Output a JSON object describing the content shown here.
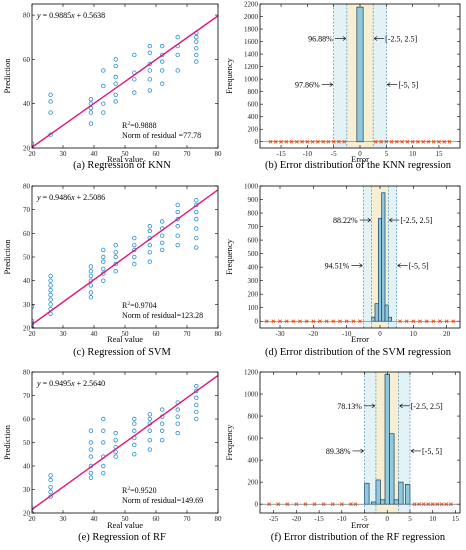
{
  "chart_data": [
    {
      "id": "a",
      "type": "scatter",
      "caption": "(a) Regression of KNN",
      "xlabel": "Real value",
      "ylabel": "Prediction",
      "xlim": [
        20,
        80
      ],
      "ylim": [
        20,
        85
      ],
      "xticks": [
        20,
        30,
        40,
        50,
        60,
        70,
        80
      ],
      "yticks": [
        20,
        40,
        60,
        80
      ],
      "equation": {
        "prefix": "y",
        "rest": " = 0.9885",
        "x": "x",
        "tail": " + 0.5638"
      },
      "r2": {
        "pre": "R",
        "sup": "2",
        "post": "=0.9888"
      },
      "norm": "Norm of residual =77.78",
      "fit": {
        "slope": 0.9885,
        "intercept": 0.5638
      },
      "points": [
        [
          20,
          22
        ],
        [
          26,
          26
        ],
        [
          26,
          36
        ],
        [
          26,
          41
        ],
        [
          26,
          44
        ],
        [
          39,
          31
        ],
        [
          39,
          36
        ],
        [
          39,
          38
        ],
        [
          39,
          40
        ],
        [
          39,
          42
        ],
        [
          43,
          36
        ],
        [
          43,
          40
        ],
        [
          43,
          48
        ],
        [
          43,
          55
        ],
        [
          47,
          41
        ],
        [
          47,
          44
        ],
        [
          47,
          49
        ],
        [
          47,
          52
        ],
        [
          47,
          57
        ],
        [
          47,
          60
        ],
        [
          53,
          45
        ],
        [
          53,
          51
        ],
        [
          53,
          54
        ],
        [
          53,
          62
        ],
        [
          58,
          46
        ],
        [
          58,
          51
        ],
        [
          58,
          55
        ],
        [
          58,
          58
        ],
        [
          58,
          63
        ],
        [
          58,
          66
        ],
        [
          62,
          49
        ],
        [
          62,
          55
        ],
        [
          62,
          59
        ],
        [
          62,
          62
        ],
        [
          62,
          66
        ],
        [
          67,
          55
        ],
        [
          67,
          62
        ],
        [
          67,
          66
        ],
        [
          67,
          70
        ],
        [
          73,
          59
        ],
        [
          73,
          62
        ],
        [
          73,
          65
        ],
        [
          73,
          68
        ],
        [
          73,
          70
        ],
        [
          73,
          72
        ]
      ]
    },
    {
      "id": "b",
      "type": "bar",
      "caption": "(b) Error distribution of the KNN regression",
      "xlabel": "Error",
      "ylabel": "Frequency",
      "xlim": [
        -19,
        19
      ],
      "ylim": [
        -100,
        2200
      ],
      "xticks": [
        -15,
        -10,
        -5,
        0,
        5,
        10,
        15
      ],
      "yticks": [
        0,
        200,
        400,
        600,
        800,
        1000,
        1200,
        1400,
        1600,
        1800,
        2000,
        2200
      ],
      "bars": [
        {
          "x": -0.6,
          "w": 1.2,
          "v": 2150
        }
      ],
      "bands": {
        "inner": [
          -2.5,
          2.5
        ],
        "outer": [
          -5,
          5
        ]
      },
      "labels": {
        "pct_inner": "96.88%",
        "pct_outer": "97.86%",
        "range_inner": "[-2.5, 2.5]",
        "range_outer": "[-5, 5]"
      },
      "outliers": [
        -17,
        -16,
        -15,
        -14,
        -13,
        -12,
        -11,
        -10,
        -9,
        -8,
        -7,
        -6,
        -5,
        -4,
        -3,
        3,
        4,
        5,
        6,
        7,
        8,
        9,
        10,
        11,
        12,
        13,
        14,
        15,
        16,
        17
      ]
    },
    {
      "id": "c",
      "type": "scatter",
      "caption": "(c) Regression of SVM",
      "xlabel": "Real value",
      "ylabel": "Prediction",
      "xlim": [
        20,
        80
      ],
      "ylim": [
        20,
        80
      ],
      "xticks": [
        20,
        30,
        40,
        50,
        60,
        70,
        80
      ],
      "yticks": [
        20,
        30,
        40,
        50,
        60,
        70,
        80
      ],
      "equation": {
        "prefix": "y",
        "rest": " = 0.9486",
        "x": "x",
        "tail": " + 2.5086"
      },
      "r2": {
        "pre": "R",
        "sup": "2",
        "post": "=0.9704"
      },
      "norm": "Norm of residual=123.28",
      "fit": {
        "slope": 0.9486,
        "intercept": 2.5086
      },
      "points": [
        [
          20,
          20
        ],
        [
          20,
          21
        ],
        [
          20,
          22
        ],
        [
          20,
          23
        ],
        [
          20,
          29
        ],
        [
          26,
          26
        ],
        [
          26,
          28
        ],
        [
          26,
          30
        ],
        [
          26,
          32
        ],
        [
          26,
          34
        ],
        [
          26,
          36
        ],
        [
          26,
          38
        ],
        [
          26,
          40
        ],
        [
          26,
          42
        ],
        [
          39,
          33
        ],
        [
          39,
          35
        ],
        [
          39,
          38
        ],
        [
          39,
          40
        ],
        [
          39,
          42
        ],
        [
          39,
          44
        ],
        [
          39,
          46
        ],
        [
          43,
          40
        ],
        [
          43,
          43
        ],
        [
          43,
          45
        ],
        [
          43,
          48
        ],
        [
          43,
          50
        ],
        [
          43,
          53
        ],
        [
          47,
          44
        ],
        [
          47,
          47
        ],
        [
          47,
          50
        ],
        [
          47,
          52
        ],
        [
          47,
          55
        ],
        [
          53,
          47
        ],
        [
          53,
          50
        ],
        [
          53,
          53
        ],
        [
          53,
          55
        ],
        [
          53,
          58
        ],
        [
          58,
          48
        ],
        [
          58,
          52
        ],
        [
          58,
          55
        ],
        [
          58,
          58
        ],
        [
          58,
          61
        ],
        [
          58,
          63
        ],
        [
          62,
          53
        ],
        [
          62,
          56
        ],
        [
          62,
          59
        ],
        [
          62,
          62
        ],
        [
          62,
          65
        ],
        [
          67,
          55
        ],
        [
          67,
          59
        ],
        [
          67,
          63
        ],
        [
          67,
          66
        ],
        [
          67,
          69
        ],
        [
          67,
          72
        ],
        [
          73,
          54
        ],
        [
          73,
          58
        ],
        [
          73,
          62
        ],
        [
          73,
          66
        ],
        [
          73,
          69
        ],
        [
          73,
          72
        ],
        [
          73,
          74
        ]
      ]
    },
    {
      "id": "d",
      "type": "bar",
      "caption": "(d) Error distribution of the SVM regression",
      "xlabel": "Error",
      "ylabel": "Frequency",
      "xlim": [
        -36,
        24
      ],
      "ylim": [
        -50,
        1000
      ],
      "xticks": [
        -30,
        -20,
        -10,
        0,
        10,
        20
      ],
      "yticks": [
        0,
        100,
        200,
        300,
        400,
        500,
        600,
        700,
        800,
        900,
        1000
      ],
      "bars": [
        {
          "x": -2.5,
          "w": 1,
          "v": 30
        },
        {
          "x": -1.5,
          "w": 1,
          "v": 130
        },
        {
          "x": -0.5,
          "w": 1,
          "v": 760
        },
        {
          "x": 0.5,
          "w": 1,
          "v": 950
        },
        {
          "x": 1.5,
          "w": 1,
          "v": 120
        },
        {
          "x": 2.5,
          "w": 1,
          "v": 30
        }
      ],
      "bands": {
        "inner": [
          -2.5,
          2.5
        ],
        "outer": [
          -5,
          5
        ]
      },
      "labels": {
        "pct_inner": "88.22%",
        "pct_outer": "94.51%",
        "range_inner": "[-2.5, 2.5]",
        "range_outer": "[-5, 5]"
      },
      "outliers": [
        -34,
        -32,
        -30,
        -28,
        -26,
        -24,
        -22,
        -20,
        -18,
        -16,
        -14,
        -12,
        -10,
        -8,
        -6,
        6,
        8,
        10,
        12,
        14,
        16,
        18,
        20,
        22
      ]
    },
    {
      "id": "e",
      "type": "scatter",
      "caption": "(e) Regression of RF",
      "xlabel": "Real value",
      "ylabel": "Prediction",
      "xlim": [
        20,
        80
      ],
      "ylim": [
        20,
        80
      ],
      "xticks": [
        20,
        30,
        40,
        50,
        60,
        70,
        80
      ],
      "yticks": [
        20,
        30,
        40,
        50,
        60,
        70,
        80
      ],
      "equation": {
        "prefix": "y",
        "rest": " = 0.9495",
        "x": "x",
        "tail": " + 2.5640"
      },
      "r2": {
        "pre": "R",
        "sup": "2",
        "post": "=0.9520"
      },
      "norm": "Norm of residual=149.69",
      "fit": {
        "slope": 0.9495,
        "intercept": 2.564
      },
      "points": [
        [
          20,
          20
        ],
        [
          20,
          22
        ],
        [
          26,
          27
        ],
        [
          26,
          29
        ],
        [
          26,
          31
        ],
        [
          26,
          34
        ],
        [
          26,
          36
        ],
        [
          39,
          35
        ],
        [
          39,
          37
        ],
        [
          39,
          40
        ],
        [
          39,
          44
        ],
        [
          39,
          47
        ],
        [
          39,
          50
        ],
        [
          39,
          55
        ],
        [
          43,
          37
        ],
        [
          43,
          40
        ],
        [
          43,
          44
        ],
        [
          43,
          50
        ],
        [
          43,
          55
        ],
        [
          43,
          60
        ],
        [
          47,
          44
        ],
        [
          47,
          46
        ],
        [
          47,
          48
        ],
        [
          47,
          51
        ],
        [
          47,
          54
        ],
        [
          53,
          45
        ],
        [
          53,
          49
        ],
        [
          53,
          52
        ],
        [
          53,
          55
        ],
        [
          53,
          58
        ],
        [
          53,
          60
        ],
        [
          58,
          47
        ],
        [
          58,
          51
        ],
        [
          58,
          55
        ],
        [
          58,
          58
        ],
        [
          58,
          60
        ],
        [
          58,
          62
        ],
        [
          62,
          51
        ],
        [
          62,
          55
        ],
        [
          62,
          58
        ],
        [
          62,
          61
        ],
        [
          62,
          64
        ],
        [
          67,
          54
        ],
        [
          67,
          58
        ],
        [
          67,
          61
        ],
        [
          67,
          64
        ],
        [
          67,
          67
        ],
        [
          73,
          60
        ],
        [
          73,
          63
        ],
        [
          73,
          66
        ],
        [
          73,
          69
        ],
        [
          73,
          72
        ],
        [
          73,
          74
        ]
      ]
    },
    {
      "id": "f",
      "type": "bar",
      "caption": "(f) Error distribution of the RF regression",
      "xlabel": "Error",
      "ylabel": "Frequency",
      "xlim": [
        -28,
        16
      ],
      "ylim": [
        -80,
        1200
      ],
      "xticks": [
        -25,
        -20,
        -15,
        -10,
        -5,
        0,
        5,
        10,
        15
      ],
      "yticks": [
        0,
        200,
        400,
        600,
        800,
        1000,
        1200
      ],
      "bars": [
        {
          "x": -5,
          "w": 1,
          "v": 190
        },
        {
          "x": -3.5,
          "w": 1,
          "v": 20
        },
        {
          "x": -2.5,
          "w": 1,
          "v": 220
        },
        {
          "x": -1.5,
          "w": 1,
          "v": 40
        },
        {
          "x": -0.5,
          "w": 1,
          "v": 1180
        },
        {
          "x": 0.5,
          "w": 1,
          "v": 640
        },
        {
          "x": 1.5,
          "w": 1,
          "v": 40
        },
        {
          "x": 2.5,
          "w": 1,
          "v": 200
        },
        {
          "x": 4,
          "w": 1,
          "v": 180
        }
      ],
      "bands": {
        "inner": [
          -2.5,
          2.5
        ],
        "outer": [
          -5,
          5
        ]
      },
      "labels": {
        "pct_inner": "78.13%",
        "pct_outer": "89.38%",
        "range_inner": "[-2.5, 2.5]",
        "range_outer": "[-5, 5]"
      },
      "outliers": [
        -26,
        -24,
        -22,
        -20,
        -18,
        -16,
        -14,
        -12,
        -10,
        -8,
        -7,
        6,
        7,
        8,
        9,
        10,
        11,
        12,
        13,
        14
      ]
    }
  ]
}
